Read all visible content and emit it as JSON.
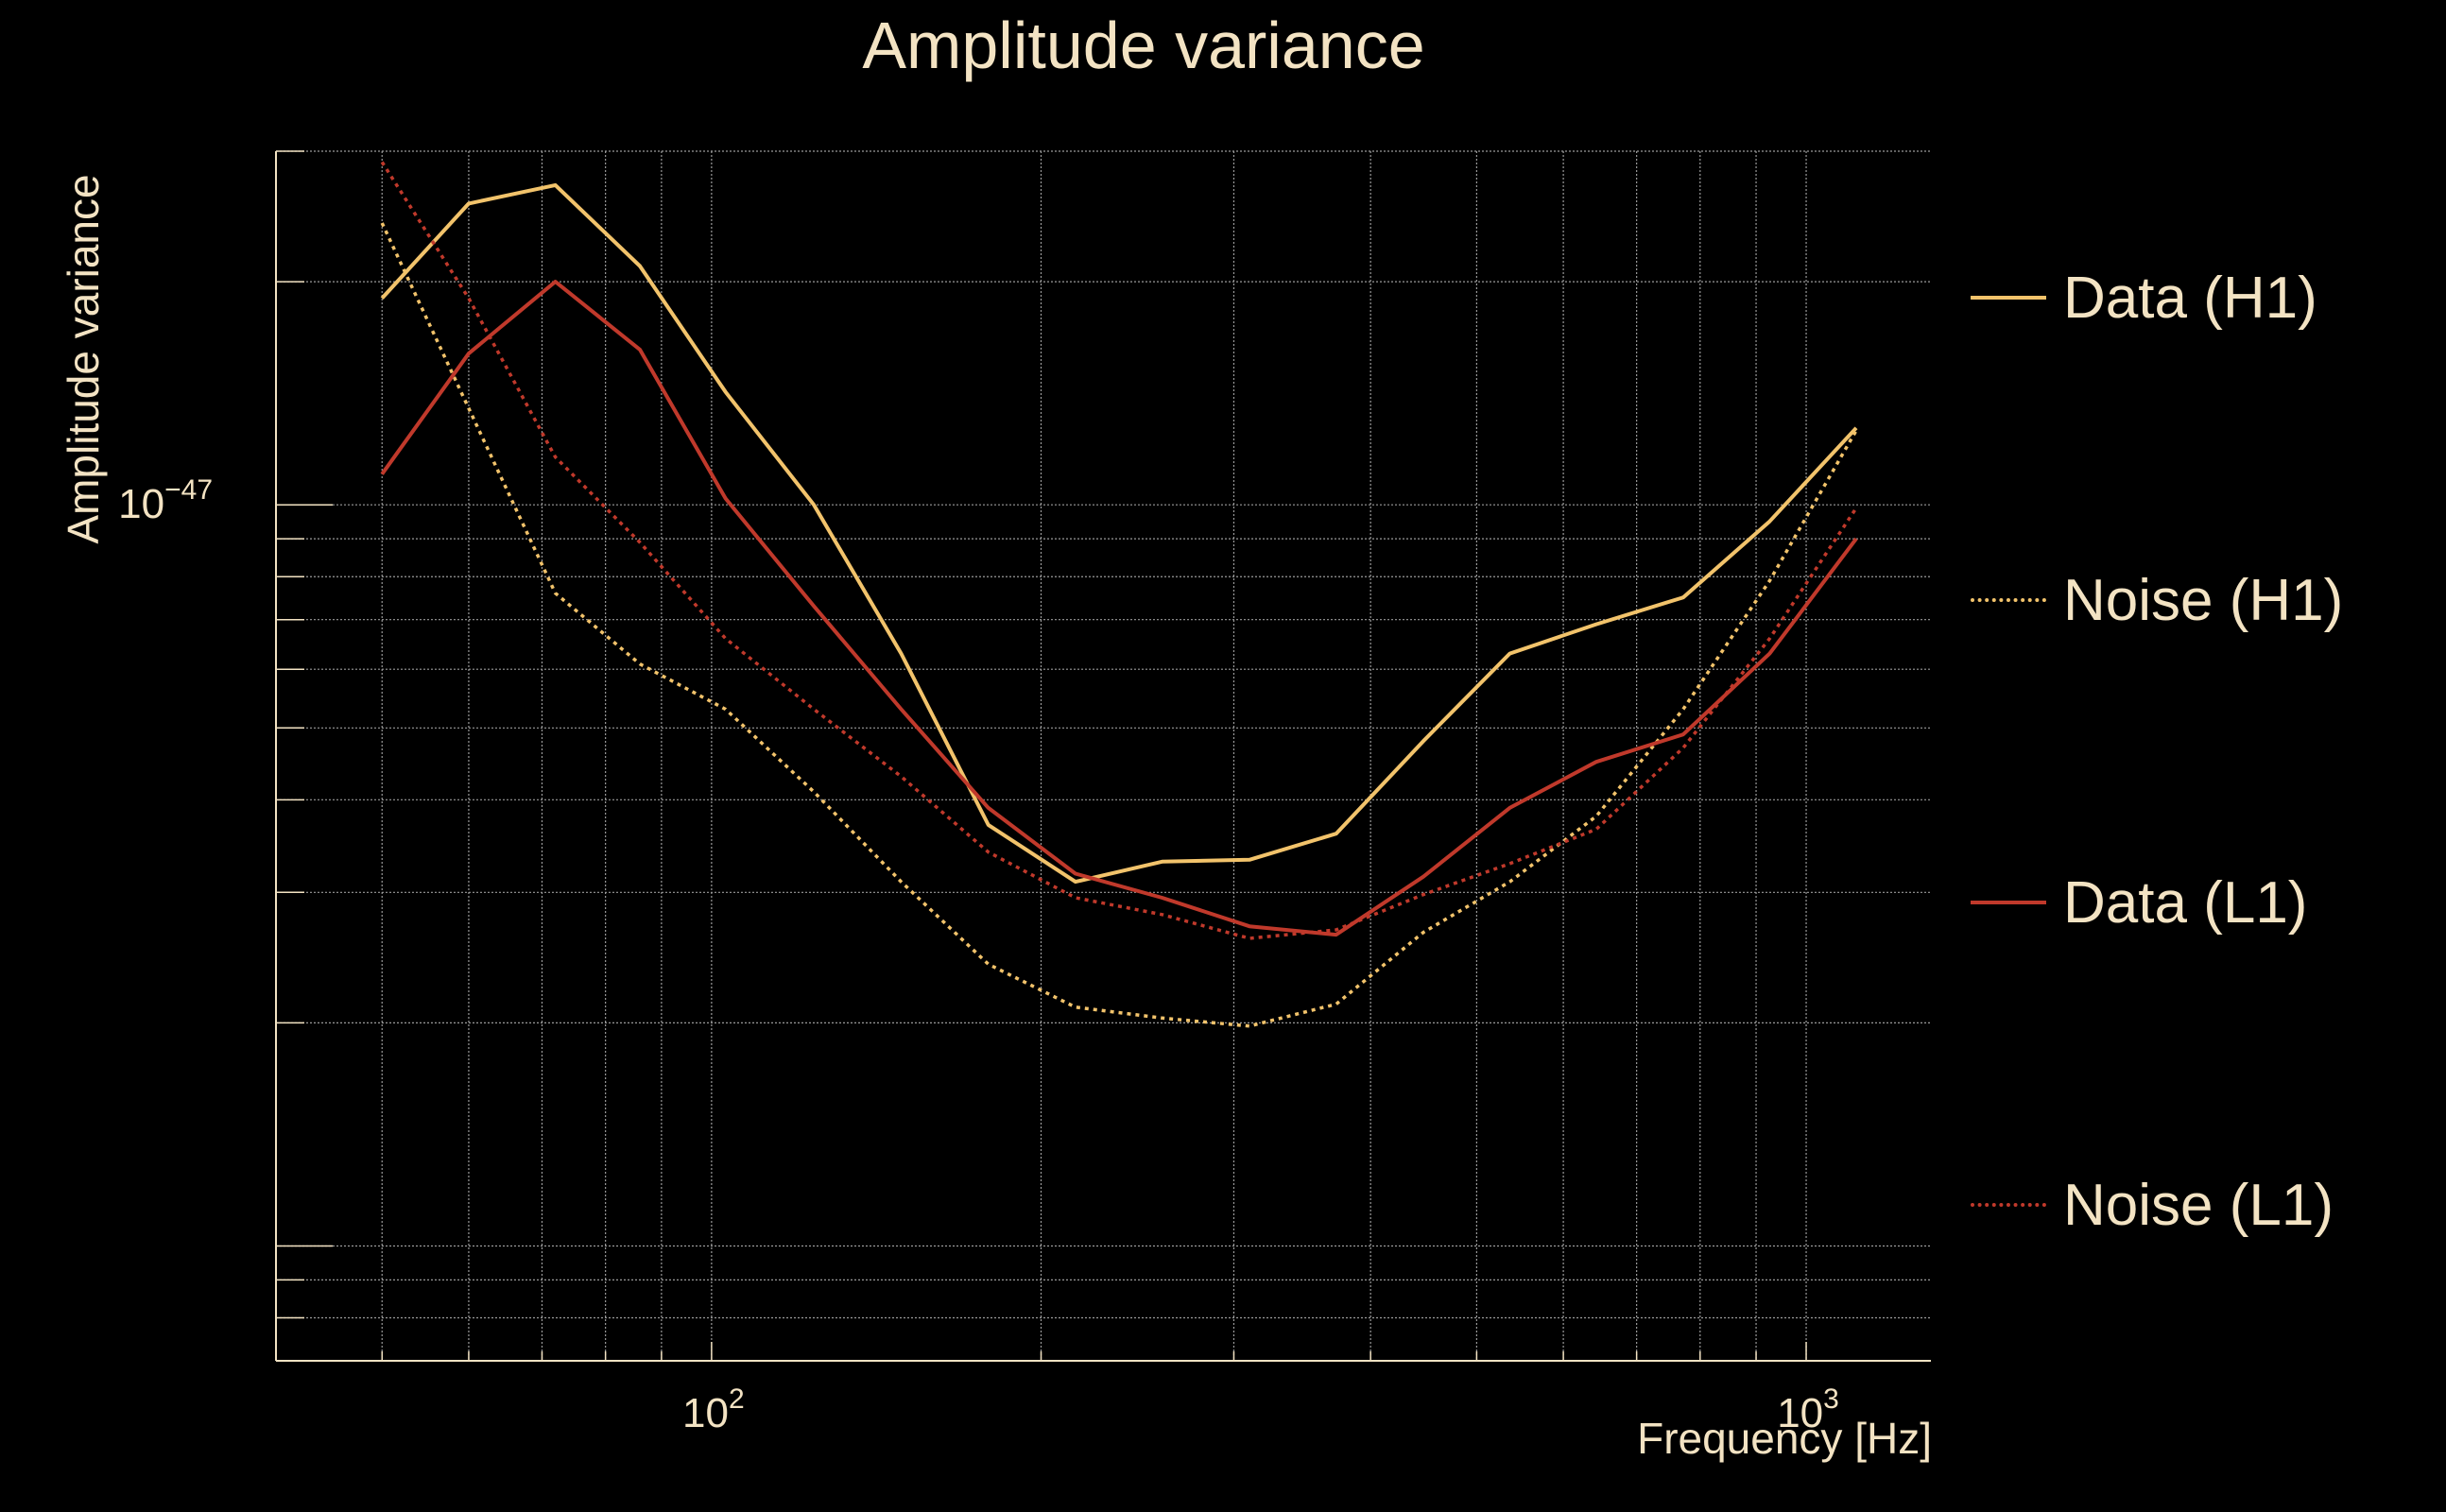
{
  "chart_data": {
    "type": "line",
    "title": "Amplitude variance",
    "xlabel": "Frequency [Hz]",
    "ylabel": "Amplitude variance",
    "x_scale": "log",
    "y_scale": "log",
    "xlim": [
      40,
      1300
    ],
    "ylim": [
      7e-49,
      3e-47
    ],
    "x_ticks": [
      {
        "value": 100,
        "base": "10",
        "exp": "2"
      },
      {
        "value": 1000,
        "base": "10",
        "exp": "3"
      }
    ],
    "y_ticks": [
      {
        "value": 1e-47,
        "base": "10",
        "exp": "−47"
      }
    ],
    "grid": true,
    "legend": "right",
    "x": [
      50,
      60,
      72,
      86,
      103,
      124,
      149,
      179,
      215,
      258,
      310,
      372,
      447,
      536,
      643,
      772,
      926,
      1111
    ],
    "series": [
      {
        "name": "Data (H1)",
        "color": "#f2c36b",
        "style": "solid",
        "values": [
          1.9e-47,
          2.55e-47,
          2.7e-47,
          2.1e-47,
          1.42e-47,
          1e-47,
          6.3e-48,
          3.7e-48,
          3.1e-48,
          3.3e-48,
          3.32e-48,
          3.6e-48,
          4.8e-48,
          6.3e-48,
          6.9e-48,
          7.5e-48,
          9.5e-48,
          1.27e-47
        ]
      },
      {
        "name": "Noise (H1)",
        "color": "#f2c36b",
        "style": "dotted",
        "values": [
          2.4e-47,
          1.35e-47,
          7.6e-48,
          6.1e-48,
          5.3e-48,
          4.1e-48,
          3.1e-48,
          2.4e-48,
          2.1e-48,
          2.03e-48,
          1.98e-48,
          2.12e-48,
          2.65e-48,
          3.1e-48,
          3.8e-48,
          5.3e-48,
          7.9e-48,
          1.26e-47
        ]
      },
      {
        "name": "Data (L1)",
        "color": "#c0392b",
        "style": "solid",
        "values": [
          1.1e-47,
          1.6e-47,
          2e-47,
          1.62e-47,
          1.02e-47,
          7.3e-48,
          5.3e-48,
          3.9e-48,
          3.18e-48,
          2.95e-48,
          2.7e-48,
          2.63e-48,
          3.15e-48,
          3.9e-48,
          4.5e-48,
          4.9e-48,
          6.3e-48,
          9e-48
        ]
      },
      {
        "name": "Noise (L1)",
        "color": "#c0392b",
        "style": "dotted",
        "values": [
          2.9e-47,
          1.9e-47,
          1.16e-47,
          8.9e-48,
          6.6e-48,
          5.3e-48,
          4.3e-48,
          3.4e-48,
          2.95e-48,
          2.8e-48,
          2.6e-48,
          2.67e-48,
          2.98e-48,
          3.28e-48,
          3.65e-48,
          4.7e-48,
          6.6e-48,
          9.9e-48
        ]
      }
    ]
  }
}
